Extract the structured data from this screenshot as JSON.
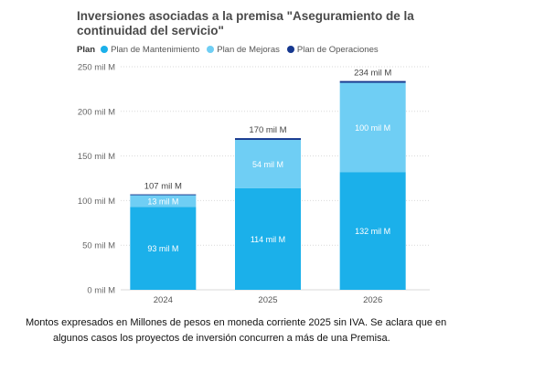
{
  "chart_data": {
    "type": "bar",
    "stacked": true,
    "title": "Inversiones asociadas a la premisa \"Aseguramiento de la continuidad del servicio\"",
    "legend_title": "Plan",
    "legend_position": "top-left",
    "categories": [
      "2024",
      "2025",
      "2026"
    ],
    "series": [
      {
        "name": "Plan de Mantenimiento",
        "color": "#1bb0ea",
        "values": [
          93,
          114,
          132
        ],
        "labels": [
          "93 mil M",
          "114 mil M",
          "132 mil M"
        ]
      },
      {
        "name": "Plan de Mejoras",
        "color": "#6fcef4",
        "values": [
          13,
          54,
          100
        ],
        "labels": [
          "13 mil M",
          "54 mil M",
          "100 mil M"
        ]
      },
      {
        "name": "Plan de Operaciones",
        "color": "#16388f",
        "values": [
          1,
          2,
          2
        ],
        "labels": [
          "",
          "",
          ""
        ]
      }
    ],
    "totals": [
      "107 mil M",
      "170 mil M",
      "234 mil M"
    ],
    "total_values": [
      107,
      170,
      234
    ],
    "ylim": [
      0,
      250
    ],
    "yticks": [
      0,
      50,
      100,
      150,
      200,
      250
    ],
    "ytick_labels": [
      "0 mil M",
      "50 mil M",
      "100 mil M",
      "150 mil M",
      "200 mil M",
      "250 mil M"
    ],
    "grid": true,
    "xlabel": "",
    "ylabel": ""
  },
  "caption": {
    "line1": "Montos expresados en Millones de pesos en moneda corriente 2025 sin IVA. Se aclara que en",
    "line2": "algunos casos los proyectos de inversión concurren a más de una Premisa."
  }
}
